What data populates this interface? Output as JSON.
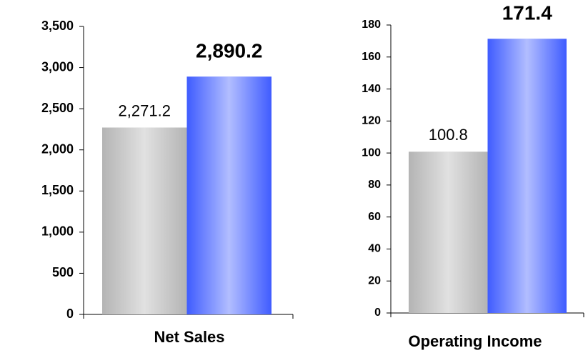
{
  "chart_data": [
    {
      "type": "bar",
      "x_label": "Net Sales",
      "categories": [
        null,
        null
      ],
      "values": [
        2271.2,
        2890.2
      ],
      "value_labels": [
        "2,271.2",
        "2,890.2"
      ],
      "colors": [
        "#b4b4b4",
        "#3f5cff"
      ],
      "ylim": [
        0,
        3500
      ],
      "yticks": [
        0,
        500,
        {
          "value": 1000,
          "label": "1,000"
        },
        {
          "value": 1500,
          "label": "1,500"
        },
        {
          "value": 2000,
          "label": "2,000"
        },
        {
          "value": 2500,
          "label": "2,500"
        },
        {
          "value": 3000,
          "label": "3,000"
        },
        {
          "value": 3500,
          "label": "3,500"
        }
      ]
    },
    {
      "type": "bar",
      "x_label": "Operating Income",
      "categories": [
        null,
        null
      ],
      "values": [
        100.8,
        171.4
      ],
      "colors": [
        "#b4b4b4",
        "#3f5cff"
      ],
      "ylim": [
        0,
        180
      ],
      "yticks": [
        0,
        20,
        40,
        60,
        80,
        100,
        120,
        140,
        160,
        180
      ]
    }
  ]
}
